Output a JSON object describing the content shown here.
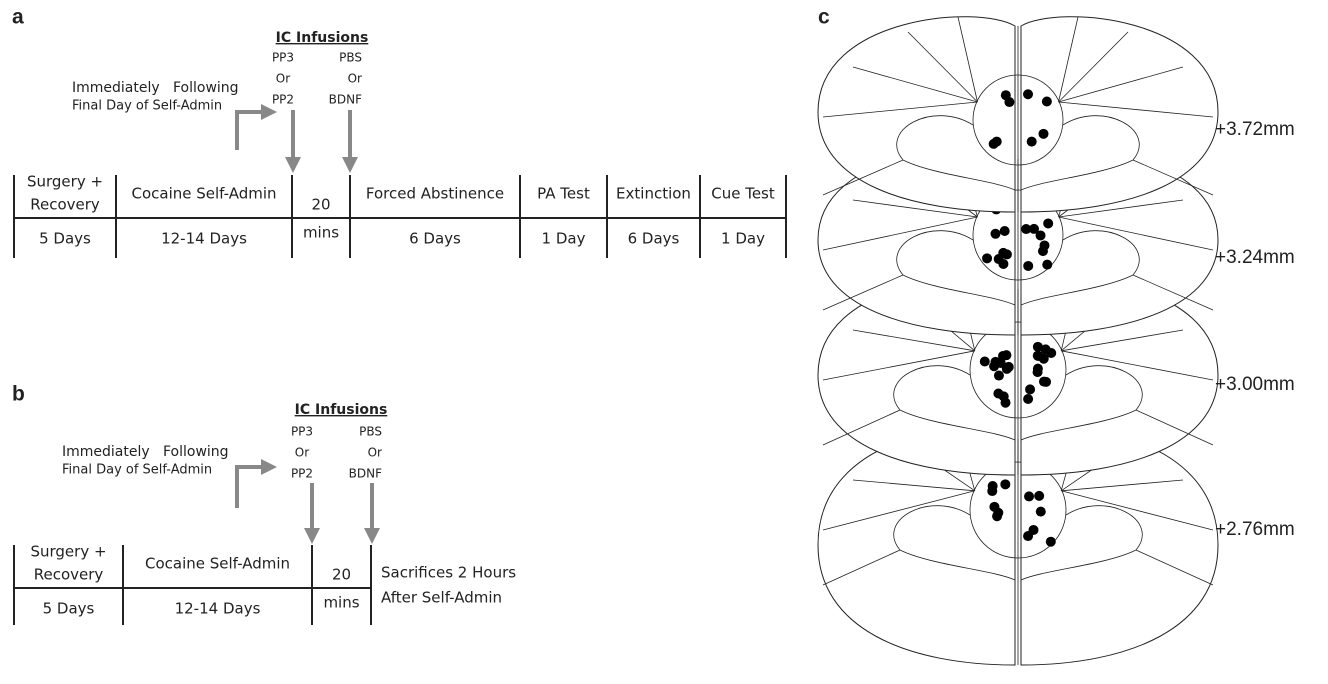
{
  "panel_a": {
    "label": "a",
    "infusions": {
      "title": "IC Infusions",
      "left": [
        "PP3",
        "Or",
        "PP2"
      ],
      "right": [
        "PBS",
        "Or",
        "BDNF"
      ]
    },
    "note": [
      "Immediately   Following",
      "Final Day of Self-Admin"
    ],
    "phases": [
      {
        "name": [
          "Surgery +",
          "Recovery"
        ],
        "duration": "5 Days"
      },
      {
        "name": [
          "Cocaine Self-Admin"
        ],
        "duration": "12-14 Days"
      },
      {
        "name": [
          "20"
        ],
        "duration": "mins"
      },
      {
        "name": [
          "Forced Abstinence"
        ],
        "duration": "6 Days"
      },
      {
        "name": [
          "PA Test"
        ],
        "duration": "1 Day"
      },
      {
        "name": [
          "Extinction"
        ],
        "duration": "6 Days"
      },
      {
        "name": [
          "Cue Test"
        ],
        "duration": "1 Day"
      }
    ]
  },
  "panel_b": {
    "label": "b",
    "infusions": {
      "title": "IC Infusions",
      "left": [
        "PP3",
        "Or",
        "PP2"
      ],
      "right": [
        "PBS",
        "Or",
        "BDNF"
      ]
    },
    "note": [
      "Immediately   Following",
      "Final Day of Self-Admin"
    ],
    "phases": [
      {
        "name": [
          "Surgery +",
          "Recovery"
        ],
        "duration": "5 Days"
      },
      {
        "name": [
          "Cocaine Self-Admin"
        ],
        "duration": "12-14 Days"
      },
      {
        "name": [
          "20"
        ],
        "duration": "mins"
      },
      {
        "name": [
          "Sacrifices 2 Hours",
          "After Self-Admin"
        ]
      }
    ]
  },
  "panel_c": {
    "label": "c",
    "levels": [
      "+3.72mm",
      "+3.24mm",
      "+3.00mm",
      "+2.76mm"
    ]
  }
}
